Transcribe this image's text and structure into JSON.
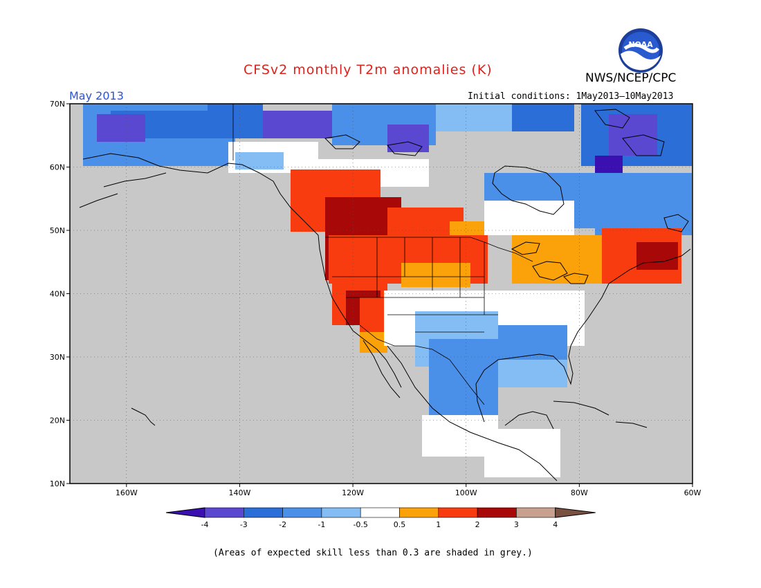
{
  "title": "CFSv2 monthly T2m anomalies (K)",
  "agency": "NWS/NCEP/CPC",
  "period": "May 2013",
  "initial_conditions": "Initial conditions: 1May2013–10May2013",
  "footnote": "(Areas of expected skill less than 0.3 are shaded in grey.)",
  "logo_text": "NOAA",
  "colors": {
    "title": "#e0201a",
    "period": "#2a52d8",
    "land_grey": "#c8c8c8",
    "ocean": "#c8c8c8"
  },
  "map": {
    "latitude_labels": [
      "70N",
      "60N",
      "50N",
      "40N",
      "30N",
      "20N",
      "10N"
    ],
    "longitude_labels": [
      "160W",
      "140W",
      "120W",
      "100W",
      "80W",
      "60W"
    ],
    "lon_range": [
      -170,
      -60
    ],
    "lat_range": [
      10,
      70
    ]
  },
  "colorbar": {
    "ticks": [
      "-4",
      "-3",
      "-2",
      "-1",
      "-0.5",
      "0.5",
      "1",
      "2",
      "3",
      "4"
    ],
    "colors": [
      "#3a10b0",
      "#5b48d0",
      "#2c6ed8",
      "#4a90e8",
      "#84bcf4",
      "#ffffff",
      "#fba10a",
      "#f83c10",
      "#a80808",
      "#c8a090",
      "#7a5040"
    ]
  }
}
